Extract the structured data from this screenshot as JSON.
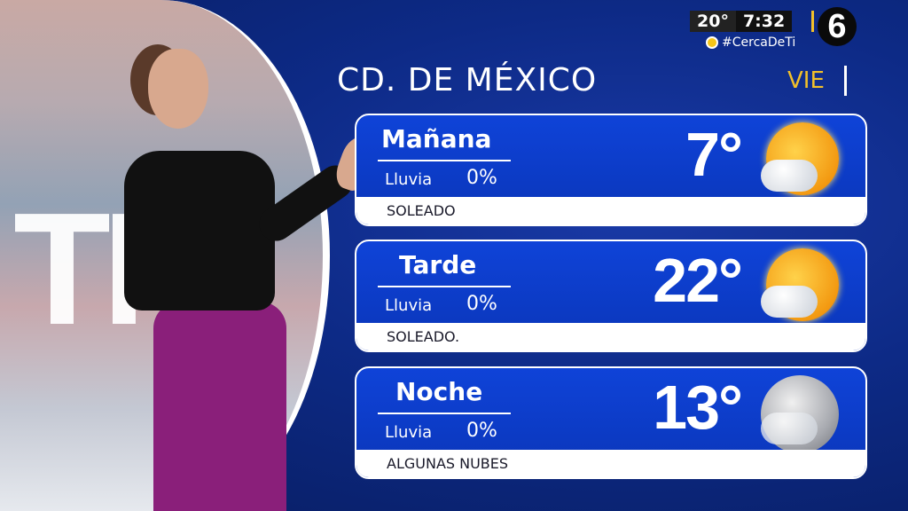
{
  "header": {
    "city": "CD. DE MÉXICO",
    "day": "VIE",
    "temperature": "20°",
    "time": "7:32",
    "hashtag": "#CercaDeTi",
    "channel_logo": "6"
  },
  "background": {
    "logo_letters": "TI"
  },
  "colors": {
    "accent": "#f2c02a",
    "card_blue": "#0f43d8",
    "background": "#0d2a86"
  },
  "forecast": [
    {
      "period": "Mañana",
      "rain_label": "Lluvia",
      "rain_value": "0%",
      "temp": "7°",
      "condition": "SOLEADO",
      "icon": "sun-cloud-icon"
    },
    {
      "period": "Tarde",
      "rain_label": "Lluvia",
      "rain_value": "0%",
      "temp": "22°",
      "condition": "SOLEADO.",
      "icon": "sun-cloud-icon"
    },
    {
      "period": "Noche",
      "rain_label": "Lluvia",
      "rain_value": "0%",
      "temp": "13°",
      "condition": "ALGUNAS NUBES",
      "icon": "moon-cloud-icon"
    }
  ]
}
